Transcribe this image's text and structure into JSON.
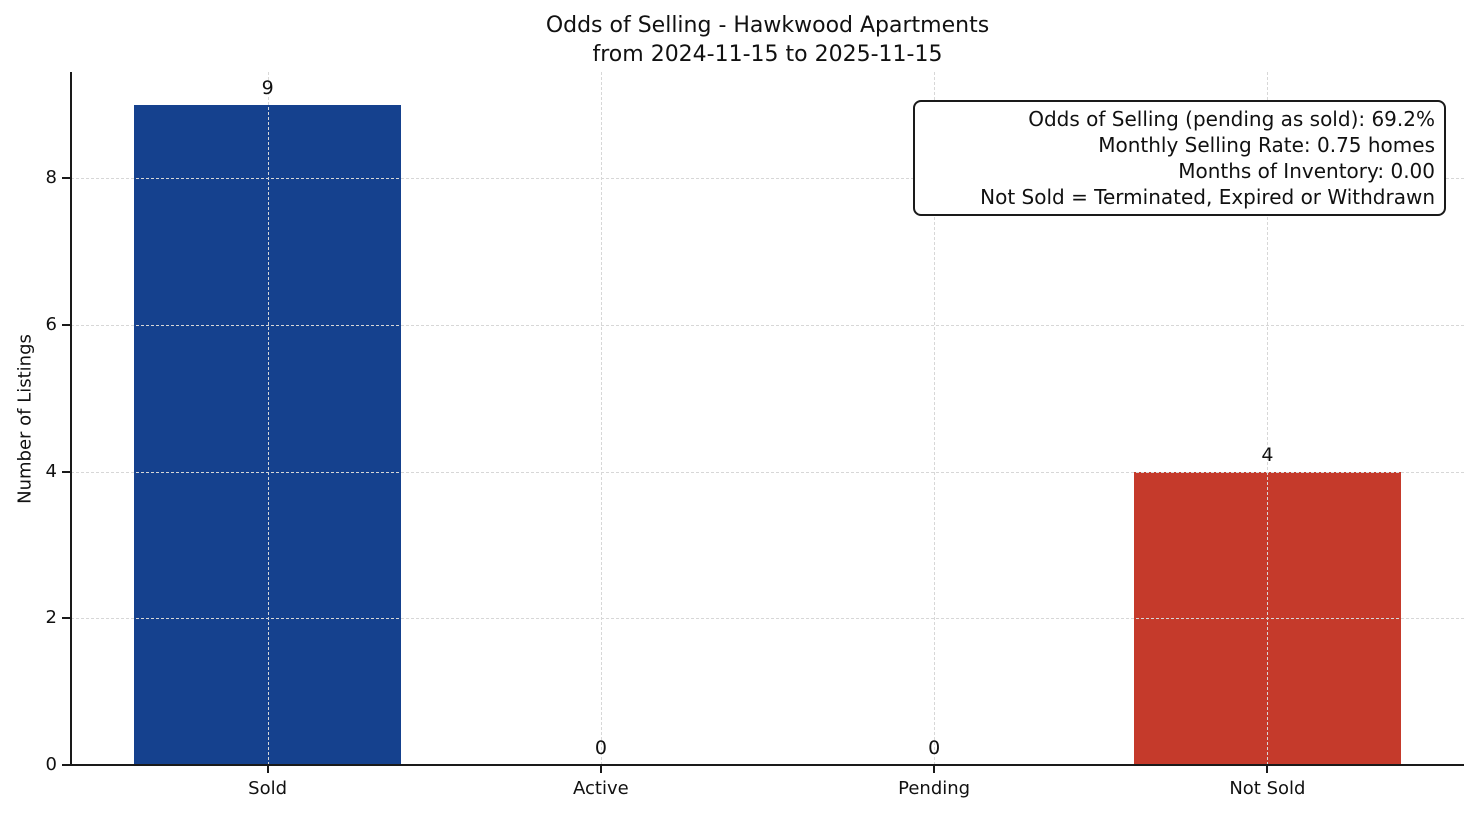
{
  "title": {
    "line1": "Odds of Selling - Hawkwood Apartments",
    "line2": "from 2024-11-15 to 2025-11-15"
  },
  "annotation_box": {
    "lines": [
      "Odds of Selling (pending as sold): 69.2%",
      "Monthly Selling Rate: 0.75 homes",
      "Months of Inventory: 0.00",
      "Not Sold = Terminated, Expired or Withdrawn"
    ]
  },
  "chart_data": {
    "type": "bar",
    "title": "Odds of Selling - Hawkwood Apartments\nfrom 2024-11-15 to 2025-11-15",
    "categories": [
      "Sold",
      "Active",
      "Pending",
      "Not Sold"
    ],
    "values": [
      9,
      0,
      0,
      4
    ],
    "bar_value_labels": [
      "9",
      "0",
      "0",
      "4"
    ],
    "series": [
      {
        "name": "Sold",
        "value": 9,
        "color": "#15418e"
      },
      {
        "name": "Active",
        "value": 0,
        "color": "#15418e"
      },
      {
        "name": "Pending",
        "value": 0,
        "color": "#15418e"
      },
      {
        "name": "Not Sold",
        "value": 4,
        "color": "#c53a2b"
      }
    ],
    "xlabel": "",
    "ylabel": "Number of Listings",
    "yticks": [
      0,
      2,
      4,
      6,
      8
    ],
    "ylim": [
      0,
      9.45
    ],
    "grid": true,
    "grid_style": "dashed",
    "grid_axes": "both",
    "legend": "none",
    "colors": {
      "sold_bar": "#15418e",
      "not_sold_bar": "#c53a2b",
      "grid": "#d7d7d7",
      "text": "#111111"
    }
  }
}
